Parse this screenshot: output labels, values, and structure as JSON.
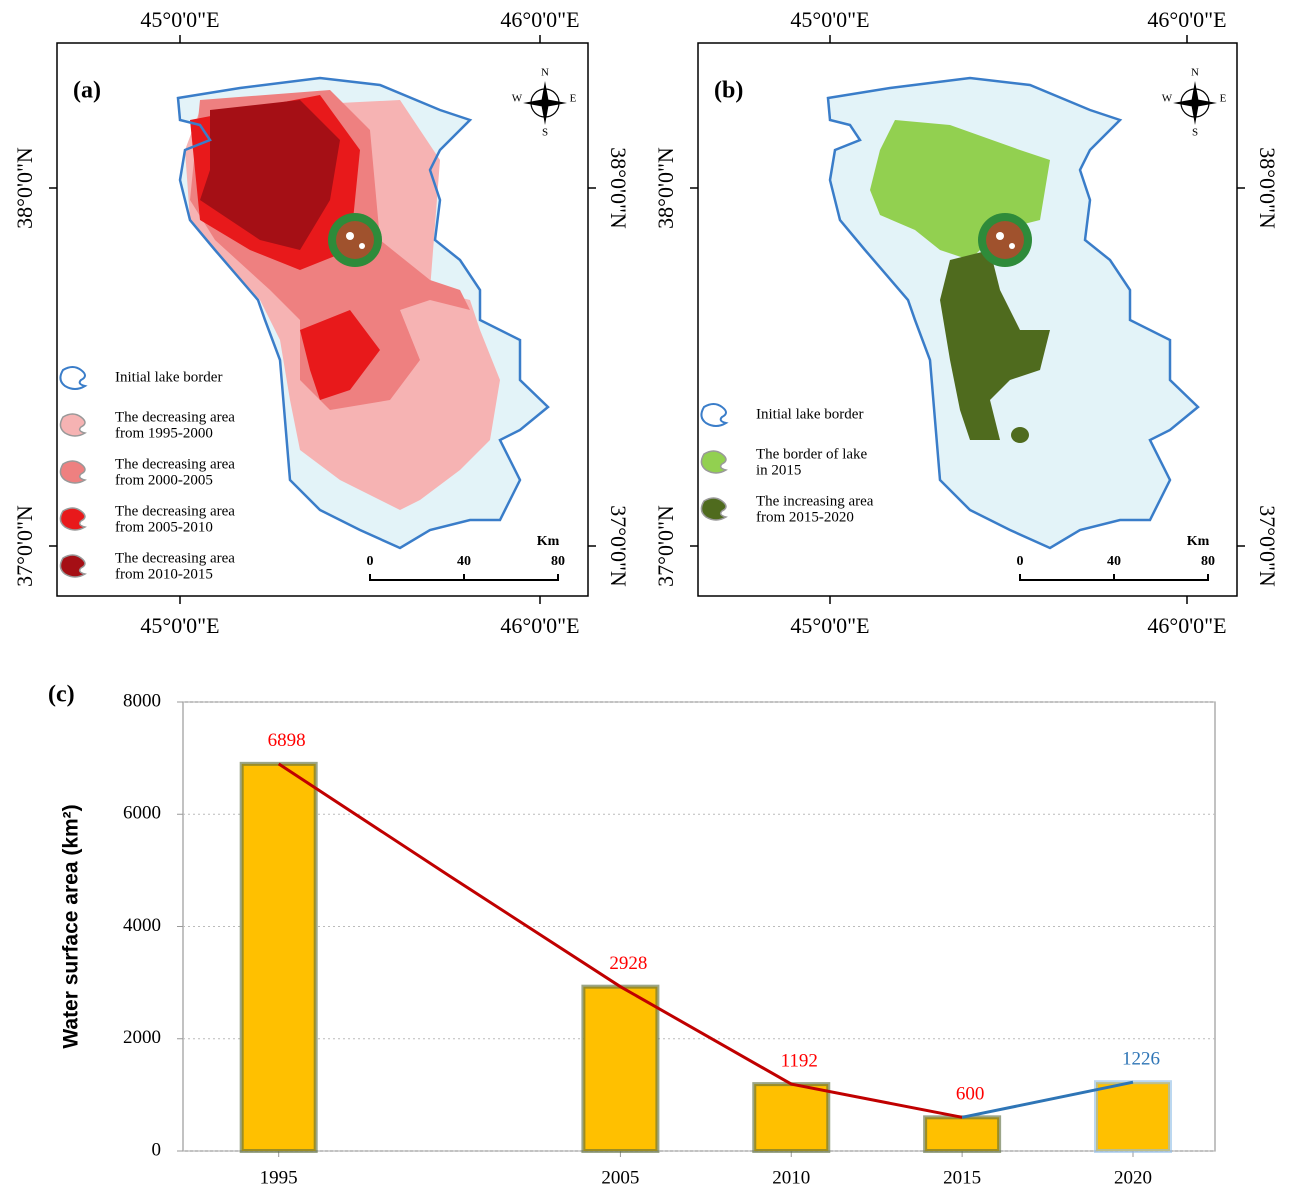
{
  "maps": [
    {
      "panel": "(a)",
      "longitudes": [
        "45°0'0\"E",
        "46°0'0\"E"
      ],
      "latitudes": [
        "38°0'0\"N",
        "37°0'0\"N"
      ],
      "compass": [
        "N",
        "S",
        "W",
        "E"
      ],
      "border_color": "#3a7dc9",
      "legend": [
        {
          "lines": [
            "Initial lake border"
          ],
          "color": "#ffffff"
        },
        {
          "lines": [
            "The decreasing area",
            "from 1995-2000"
          ],
          "color": "#f6b3b3"
        },
        {
          "lines": [
            "The decreasing area",
            "from 2000-2005"
          ],
          "color": "#ee8080"
        },
        {
          "lines": [
            "The decreasing area",
            "from 2005-2010"
          ],
          "color": "#e8191b"
        },
        {
          "lines": [
            "The decreasing area",
            "from 2010-2015"
          ],
          "color": "#a50f15"
        }
      ],
      "scale": {
        "unit": "Km",
        "ticks": [
          0,
          40,
          80
        ]
      }
    },
    {
      "panel": "(b)",
      "longitudes": [
        "45°0'0\"E",
        "46°0'0\"E"
      ],
      "latitudes": [
        "38°0'0\"N",
        "37°0'0\"N"
      ],
      "compass": [
        "N",
        "S",
        "W",
        "E"
      ],
      "border_color": "#3a7dc9",
      "legend": [
        {
          "lines": [
            "Initial lake border"
          ],
          "color": "#ffffff"
        },
        {
          "lines": [
            "The border of lake",
            "in 2015"
          ],
          "color": "#92d050"
        },
        {
          "lines": [
            "The increasing area",
            "from 2015-2020"
          ],
          "color": "#4f6b1e"
        }
      ],
      "scale": {
        "unit": "Km",
        "ticks": [
          0,
          40,
          80
        ]
      }
    }
  ],
  "chart_data": {
    "type": "bar",
    "panel_label": "(c)",
    "y_label": "Water surface area (km²)",
    "x": [
      1995,
      2005,
      2010,
      2015,
      2020
    ],
    "values": [
      6898,
      2928,
      1192,
      600,
      1226
    ],
    "color": "#ffc000",
    "edge_colors": [
      "#5a6b3a",
      "#5a6b3a",
      "#5a6b3a",
      "#5a6b3a",
      "#8fbce6"
    ],
    "label_colors": [
      "#ff0000",
      "#ff0000",
      "#ff0000",
      "#ff0000",
      "#2e75b6"
    ],
    "lines": [
      {
        "color": "#c00000",
        "x": [
          1995,
          2000,
          2005,
          2010,
          2015
        ],
        "values": [
          6898,
          4900,
          2928,
          1192,
          600
        ]
      },
      {
        "color": "#2e75b6",
        "x": [
          2015,
          2020
        ],
        "values": [
          600,
          1226
        ]
      }
    ],
    "xlim": [
      1992.2,
      2022.4
    ],
    "xticks": [
      1995,
      2005,
      2010,
      2015,
      2020
    ],
    "ylim": [
      0,
      8000
    ],
    "yticks": [
      0,
      2000,
      4000,
      6000,
      8000
    ],
    "grid": true
  }
}
